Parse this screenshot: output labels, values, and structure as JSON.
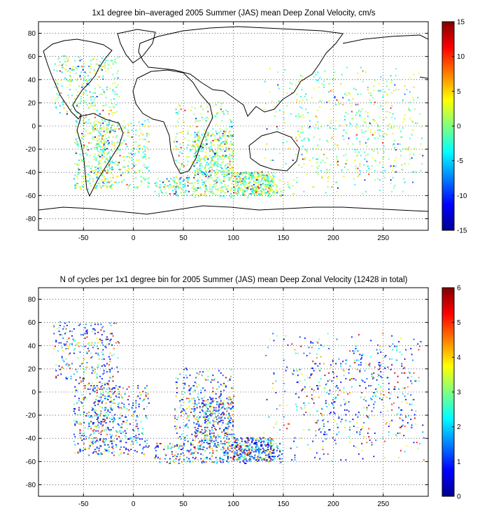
{
  "figure": {
    "background": "#ffffff"
  },
  "chart_data": [
    {
      "type": "heatmap",
      "title": "1x1 degree bin–averaged 2005 Summer (JAS) mean Deep Zonal Velocity, cm/s",
      "xlabel": "",
      "ylabel": "",
      "xlim": [
        -95,
        295
      ],
      "ylim": [
        -90,
        90
      ],
      "xticks": [
        -50,
        0,
        50,
        100,
        150,
        200,
        250
      ],
      "yticks": [
        -80,
        -60,
        -40,
        -20,
        0,
        20,
        40,
        60,
        80
      ],
      "grid": "dotted",
      "colormap": "jet",
      "clim": [
        -15,
        15
      ],
      "colorbar_ticks": [
        -15,
        -10,
        -5,
        0,
        5,
        10,
        15
      ]
    },
    {
      "type": "heatmap",
      "title": "N of cycles per 1x1 degree bin for 2005 Summer (JAS) mean Deep Zonal Velocity (12428 in total)",
      "xlabel": "",
      "ylabel": "",
      "xlim": [
        -95,
        295
      ],
      "ylim": [
        -90,
        90
      ],
      "xticks": [
        -50,
        0,
        50,
        100,
        150,
        200,
        250
      ],
      "yticks": [
        -80,
        -60,
        -40,
        -20,
        0,
        20,
        40,
        60,
        80
      ],
      "grid": "dotted",
      "colormap": "jet",
      "clim": [
        0,
        6
      ],
      "colorbar_ticks": [
        0,
        1,
        2,
        3,
        4,
        5,
        6
      ]
    }
  ]
}
